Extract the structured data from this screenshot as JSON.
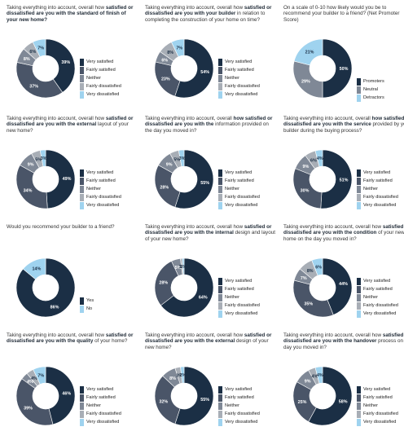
{
  "colors": {
    "very_satisfied": "#1b2f45",
    "fairly_satisfied": "#4a5568",
    "neither": "#7f8896",
    "fairly_dissatisfied": "#a8aeb6",
    "very_dissatisfied": "#9fd3ef",
    "label_light": "#ffffff",
    "label_dark": "#1b2f45"
  },
  "chart_data": [
    {
      "type": "pie",
      "title_plain": "Taking  everything into account, overall how",
      "title_bold": "satisfied or dissatisfied are you with the standard of finish of your new home?",
      "title_tail": "",
      "legend": [
        "Very satisfied",
        "Fairly satisfied",
        "Neither",
        "Fairly dissatisfied",
        "Very dissatisfied"
      ],
      "values": [
        39,
        37,
        8,
        6,
        7
      ],
      "labels": [
        "39%",
        "37%",
        "8%",
        "6%",
        "7%"
      ]
    },
    {
      "type": "pie",
      "title_plain": "Taking  everything into account, overall how",
      "title_bold": "satisfied or dissatisfied are you with your builder",
      "title_tail": "in relation to completing the construction of your home on time?",
      "legend": [
        "Very satisfied",
        "Fairly satisfied",
        "Neither",
        "Fairly dissatisfied",
        "Very dissatisfied"
      ],
      "values": [
        54,
        23,
        6,
        8,
        7
      ],
      "labels": [
        "54%",
        "23%",
        "6%",
        "8%",
        "7%"
      ]
    },
    {
      "type": "pie",
      "title_plain": "On a scale of 0-10 how likely would you be to recommend your builder to a friend? (Net Promoter Score)",
      "title_bold": "",
      "title_tail": "",
      "legend": [
        "Promoters",
        "Neutral",
        "Detractors"
      ],
      "values": [
        50,
        29,
        21
      ],
      "labels": [
        "50%",
        "29%",
        "21%"
      ]
    },
    {
      "type": "pie",
      "title_plain": "Taking  everything into account, overall how",
      "title_bold": "satisfied or dissatisfied are you with the external",
      "title_tail": "layout of your new home?",
      "legend": [
        "Very satisfied",
        "Fairly satisfied",
        "Neither",
        "Fairly dissatisfied",
        "Very dissatisfied"
      ],
      "values": [
        49,
        34,
        9,
        5,
        3
      ],
      "labels": [
        "49%",
        "34%",
        "9%",
        "5%",
        "3%"
      ]
    },
    {
      "type": "pie",
      "title_plain": "Taking  everything into account, overall",
      "title_bold": "how satisfied or dissatisfied are you with the",
      "title_tail": "information provided on the day you moved in?",
      "legend": [
        "Very satisfied",
        "Fairly satisfied",
        "Neither",
        "Fairly dissatisfied",
        "Very dissatisfied"
      ],
      "values": [
        55,
        28,
        9,
        5,
        3
      ],
      "labels": [
        "55%",
        "28%",
        "9%",
        "5%",
        "3%"
      ]
    },
    {
      "type": "pie",
      "title_plain": "Taking  everything into account, overall",
      "title_bold": "how satisfied or dissatisfied are you with the service",
      "title_tail": "provided by your builder during the buying process?",
      "legend": [
        "Very satisfied",
        "Fairly satisfied",
        "Neither",
        "Fairly dissatisfied",
        "Very dissatisfied"
      ],
      "values": [
        51,
        30,
        9,
        6,
        4
      ],
      "labels": [
        "51%",
        "30%",
        "9%",
        "6%",
        "4%"
      ]
    },
    {
      "type": "pie",
      "title_plain": "Would you recommend your builder to a friend?",
      "title_bold": "",
      "title_tail": "",
      "legend": [
        "Yes",
        "No"
      ],
      "values": [
        86,
        14
      ],
      "labels": [
        "86%",
        "14%"
      ]
    },
    {
      "type": "pie",
      "title_plain": "Taking  everything into account, overall how",
      "title_bold": "satisfied or dissatisfied are you with the internal",
      "title_tail": "design and layout of your new home?",
      "legend": [
        "Very satisfied",
        "Fairly satisfied",
        "Neither",
        "Fairly dissatisfied",
        "Very dissatisfied"
      ],
      "values": [
        64,
        28,
        5,
        1,
        1
      ],
      "labels": [
        "64%",
        "28%",
        "5%",
        "1%",
        "1%"
      ]
    },
    {
      "type": "pie",
      "title_plain": "Taking  everything into account, overall how",
      "title_bold": "satisfied or dissatisfied are you with the condition",
      "title_tail": "of your new home on the day you moved in?",
      "legend": [
        "Very satisfied",
        "Fairly satisfied",
        "Neither",
        "Fairly dissatisfied",
        "Very dissatisfied"
      ],
      "values": [
        44,
        35,
        7,
        8,
        6
      ],
      "labels": [
        "44%",
        "35%",
        "7%",
        "8%",
        "6%"
      ]
    },
    {
      "type": "pie",
      "title_plain": "Taking  everything into account, overall how",
      "title_bold": "satisfied or dissatisfied are you with the quality",
      "title_tail": "of your home?",
      "legend": [
        "Very satisfied",
        "Fairly satisfied",
        "Neither",
        "Fairly dissatisfied",
        "Very dissatisfied"
      ],
      "values": [
        46,
        39,
        4,
        4,
        7
      ],
      "labels": [
        "46%",
        "39%",
        "4%",
        "4%",
        "7%"
      ]
    },
    {
      "type": "pie",
      "title_plain": "Taking  everything into account, overall how",
      "title_bold": "satisfied or dissatisfied are you with the external",
      "title_tail": "design of your new home?",
      "legend": [
        "Very satisfied",
        "Fairly satisfied",
        "Neither",
        "Fairly dissatisfied",
        "Very dissatisfied"
      ],
      "values": [
        55,
        32,
        8,
        3,
        2
      ],
      "labels": [
        "55%",
        "32%",
        "8%",
        "3%",
        "2%"
      ]
    },
    {
      "type": "pie",
      "title_plain": "Taking  everything into account, overall how",
      "title_bold": "satisfied or dissatisfied are you with the handover",
      "title_tail": "process on the day you moved in?",
      "legend": [
        "Very satisfied",
        "Fairly satisfied",
        "Neither",
        "Fairly dissatisfied",
        "Very dissatisfied"
      ],
      "values": [
        58,
        25,
        9,
        4,
        4
      ],
      "labels": [
        "58%",
        "25%",
        "9%",
        "4%",
        "4%"
      ]
    }
  ]
}
